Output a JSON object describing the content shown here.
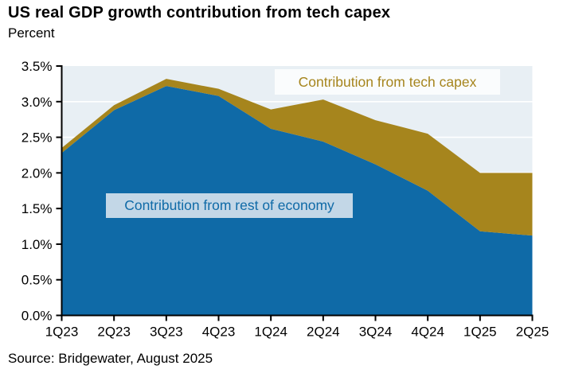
{
  "header": {
    "title": "US real GDP growth contribution from tech capex",
    "subtitle": "Percent"
  },
  "labels": {
    "tech_capex": "Contribution from tech capex",
    "rest_of_economy": "Contribution from rest of economy"
  },
  "source": "Source: Bridgewater, August 2025",
  "colors": {
    "blue_area": "#0f6aa7",
    "gold_area": "#a6851d",
    "plot_bg": "#e8eff4",
    "gridline": "#ffffff",
    "axis": "#000000",
    "tick_text": "#000000",
    "gold_label_bg": "#fafcfd",
    "blue_label_bg": "#c3d7e7"
  },
  "chart_data": {
    "type": "area",
    "stacked": true,
    "title": "US real GDP growth contribution from tech capex",
    "ylabel": "Percent",
    "xlabel": "",
    "ylim": [
      0,
      3.5
    ],
    "y_tick_step": 0.5,
    "y_ticks": [
      "0.0%",
      "0.5%",
      "1.0%",
      "1.5%",
      "2.0%",
      "2.5%",
      "3.0%",
      "3.5%"
    ],
    "grid": true,
    "legend_position": "inline-labels",
    "categories": [
      "1Q23",
      "2Q23",
      "3Q23",
      "4Q23",
      "1Q24",
      "2Q24",
      "3Q24",
      "4Q24",
      "1Q25",
      "2Q25"
    ],
    "series": [
      {
        "name": "Contribution from rest of economy",
        "color": "#0f6aa7",
        "values": [
          2.28,
          2.88,
          3.22,
          3.08,
          2.62,
          2.44,
          2.12,
          1.75,
          1.18,
          1.12
        ]
      },
      {
        "name": "Contribution from tech capex",
        "color": "#a6851d",
        "values": [
          0.07,
          0.07,
          0.1,
          0.1,
          0.27,
          0.59,
          0.62,
          0.8,
          0.82,
          0.88
        ]
      }
    ],
    "stacked_totals": [
      2.35,
      2.95,
      3.32,
      3.18,
      2.89,
      3.03,
      2.74,
      2.55,
      2.0,
      2.0
    ]
  }
}
